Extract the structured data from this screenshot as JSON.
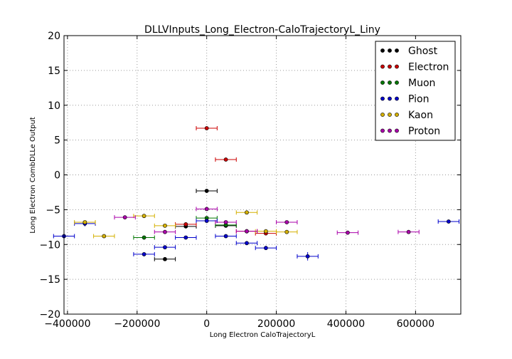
{
  "chart_data": {
    "type": "scatter",
    "title": "DLLVInputs_Long_Electron-CaloTrajectoryL_Liny",
    "xlabel": "Long Electron CaloTrajectoryL",
    "ylabel": "Long Electron CombDLLe Output",
    "xlim": [
      -410000,
      730000
    ],
    "ylim": [
      -20,
      20
    ],
    "xticks": [
      -400000,
      -200000,
      0,
      200000,
      400000,
      600000
    ],
    "xtick_labels": [
      "−400000",
      "−200000",
      "0",
      "200000",
      "400000",
      "600000"
    ],
    "yticks": [
      -20,
      -15,
      -10,
      -5,
      0,
      5,
      10,
      15,
      20
    ],
    "ytick_labels": [
      "−20",
      "−15",
      "−10",
      "−5",
      "0",
      "5",
      "10",
      "15",
      "20"
    ],
    "grid": true,
    "legend_position": "top-right",
    "series": [
      {
        "name": "Ghost",
        "color": "#000000",
        "points": [
          {
            "x": -120000,
            "y": -12.1,
            "xerr": 30000,
            "yerr": 0.2
          },
          {
            "x": -60000,
            "y": -7.4,
            "xerr": 30000,
            "yerr": 0.2
          },
          {
            "x": 0,
            "y": -2.3,
            "xerr": 30000,
            "yerr": 0.2
          },
          {
            "x": 55000,
            "y": -7.3,
            "xerr": 30000,
            "yerr": 0.2
          }
        ]
      },
      {
        "name": "Electron",
        "color": "#cc0000",
        "points": [
          {
            "x": -60000,
            "y": -7.1,
            "xerr": 30000,
            "yerr": 0.2
          },
          {
            "x": 0,
            "y": 6.7,
            "xerr": 30000,
            "yerr": 0.2
          },
          {
            "x": 55000,
            "y": 2.2,
            "xerr": 30000,
            "yerr": 0.2
          },
          {
            "x": 115000,
            "y": -8.1,
            "xerr": 30000,
            "yerr": 0.3
          },
          {
            "x": 170000,
            "y": -8.4,
            "xerr": 30000,
            "yerr": 0.2
          }
        ]
      },
      {
        "name": "Muon",
        "color": "#007700",
        "points": [
          {
            "x": -180000,
            "y": -9.0,
            "xerr": 30000,
            "yerr": 0.3
          },
          {
            "x": 0,
            "y": -6.2,
            "xerr": 30000,
            "yerr": 0.2
          },
          {
            "x": 55000,
            "y": -7.2,
            "xerr": 30000,
            "yerr": 0.2
          }
        ]
      },
      {
        "name": "Pion",
        "color": "#0000cc",
        "points": [
          {
            "x": -410000,
            "y": -8.8,
            "xerr": 30000,
            "yerr": 0.5
          },
          {
            "x": -350000,
            "y": -7.0,
            "xerr": 30000,
            "yerr": 0.4
          },
          {
            "x": -180000,
            "y": -11.4,
            "xerr": 30000,
            "yerr": 0.2
          },
          {
            "x": -120000,
            "y": -10.4,
            "xerr": 30000,
            "yerr": 0.2
          },
          {
            "x": -60000,
            "y": -9.0,
            "xerr": 30000,
            "yerr": 0.2
          },
          {
            "x": 0,
            "y": -6.6,
            "xerr": 30000,
            "yerr": 0.2
          },
          {
            "x": 55000,
            "y": -8.8,
            "xerr": 30000,
            "yerr": 0.2
          },
          {
            "x": 115000,
            "y": -9.8,
            "xerr": 30000,
            "yerr": 0.2
          },
          {
            "x": 170000,
            "y": -10.5,
            "xerr": 30000,
            "yerr": 0.3
          },
          {
            "x": 290000,
            "y": -11.7,
            "xerr": 30000,
            "yerr": 0.6
          },
          {
            "x": 695000,
            "y": -6.7,
            "xerr": 30000,
            "yerr": 0.2
          }
        ]
      },
      {
        "name": "Kaon",
        "color": "#d4b000",
        "points": [
          {
            "x": -350000,
            "y": -6.8,
            "xerr": 30000,
            "yerr": 0.2
          },
          {
            "x": -295000,
            "y": -8.8,
            "xerr": 30000,
            "yerr": 0.2
          },
          {
            "x": -180000,
            "y": -5.9,
            "xerr": 30000,
            "yerr": 0.2
          },
          {
            "x": -120000,
            "y": -7.3,
            "xerr": 30000,
            "yerr": 0.2
          },
          {
            "x": 115000,
            "y": -5.4,
            "xerr": 30000,
            "yerr": 0.2
          },
          {
            "x": 170000,
            "y": -8.1,
            "xerr": 30000,
            "yerr": 0.2
          },
          {
            "x": 230000,
            "y": -8.2,
            "xerr": 30000,
            "yerr": 0.2
          }
        ]
      },
      {
        "name": "Proton",
        "color": "#aa00aa",
        "points": [
          {
            "x": -235000,
            "y": -6.1,
            "xerr": 30000,
            "yerr": 0.2
          },
          {
            "x": -120000,
            "y": -8.2,
            "xerr": 30000,
            "yerr": 0.2
          },
          {
            "x": 0,
            "y": -4.9,
            "xerr": 30000,
            "yerr": 0.2
          },
          {
            "x": 55000,
            "y": -6.8,
            "xerr": 30000,
            "yerr": 0.2
          },
          {
            "x": 115000,
            "y": -8.1,
            "xerr": 30000,
            "yerr": 0.3
          },
          {
            "x": 230000,
            "y": -6.8,
            "xerr": 30000,
            "yerr": 0.2
          },
          {
            "x": 405000,
            "y": -8.3,
            "xerr": 30000,
            "yerr": 0.2
          },
          {
            "x": 580000,
            "y": -8.2,
            "xerr": 30000,
            "yerr": 0.2
          }
        ]
      }
    ]
  }
}
